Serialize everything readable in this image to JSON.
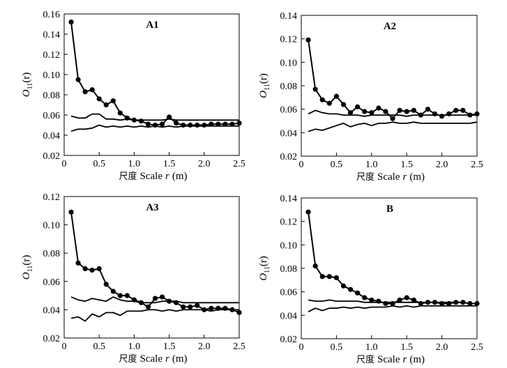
{
  "chart_data": [
    {
      "type": "line",
      "title": "A1",
      "xlabel_cjk": "尺度",
      "xlabel": "Scale",
      "xlabel_var": "r",
      "xlabel_unit": "(m)",
      "ylabel_main": "O",
      "ylabel_sub": "11",
      "ylabel_arg": "(r)",
      "xlim": [
        0,
        2.5
      ],
      "ylim": [
        0.02,
        0.16
      ],
      "xticks": [
        "0",
        "0.5",
        "1.0",
        "1.5",
        "2.0",
        "2.5"
      ],
      "yticks": [
        "0.02",
        "0.04",
        "0.06",
        "0.08",
        "0.10",
        "0.12",
        "0.14",
        "0.16"
      ],
      "x": [
        0.1,
        0.2,
        0.3,
        0.4,
        0.5,
        0.6,
        0.7,
        0.8,
        0.9,
        1.0,
        1.1,
        1.2,
        1.3,
        1.4,
        1.5,
        1.6,
        1.7,
        1.8,
        1.9,
        2.0,
        2.1,
        2.2,
        2.3,
        2.4,
        2.5
      ],
      "series": [
        {
          "role": "observed",
          "values": [
            0.152,
            0.095,
            0.083,
            0.085,
            0.076,
            0.07,
            0.074,
            0.062,
            0.057,
            0.055,
            0.054,
            0.051,
            0.05,
            0.051,
            0.058,
            0.052,
            0.05,
            0.05,
            0.05,
            0.05,
            0.051,
            0.051,
            0.051,
            0.051,
            0.052
          ]
        },
        {
          "role": "upper",
          "values": [
            0.059,
            0.057,
            0.057,
            0.061,
            0.061,
            0.056,
            0.056,
            0.055,
            0.056,
            0.055,
            0.055,
            0.055,
            0.055,
            0.055,
            0.056,
            0.055,
            0.055,
            0.055,
            0.055,
            0.055,
            0.055,
            0.055,
            0.055,
            0.055,
            0.055
          ]
        },
        {
          "role": "lower",
          "values": [
            0.044,
            0.046,
            0.046,
            0.047,
            0.05,
            0.048,
            0.049,
            0.048,
            0.049,
            0.048,
            0.049,
            0.048,
            0.049,
            0.048,
            0.049,
            0.048,
            0.049,
            0.049,
            0.049,
            0.049,
            0.049,
            0.049,
            0.049,
            0.049,
            0.049
          ]
        }
      ]
    },
    {
      "type": "line",
      "title": "A2",
      "xlabel_cjk": "尺度",
      "xlabel": "Scale",
      "xlabel_var": "r",
      "xlabel_unit": "(m)",
      "ylabel_main": "O",
      "ylabel_sub": "11",
      "ylabel_arg": "(r)",
      "xlim": [
        0,
        2.5
      ],
      "ylim": [
        0.02,
        0.14
      ],
      "xticks": [
        "0",
        "0.5",
        "1.0",
        "1.5",
        "2.0",
        "2.5"
      ],
      "yticks": [
        "0.02",
        "0.04",
        "0.06",
        "0.08",
        "0.10",
        "0.12",
        "0.14"
      ],
      "x": [
        0.1,
        0.2,
        0.3,
        0.4,
        0.5,
        0.6,
        0.7,
        0.8,
        0.9,
        1.0,
        1.1,
        1.2,
        1.3,
        1.4,
        1.5,
        1.6,
        1.7,
        1.8,
        1.9,
        2.0,
        2.1,
        2.2,
        2.3,
        2.4,
        2.5
      ],
      "series": [
        {
          "role": "observed",
          "values": [
            0.119,
            0.077,
            0.068,
            0.065,
            0.071,
            0.064,
            0.057,
            0.062,
            0.058,
            0.057,
            0.061,
            0.058,
            0.052,
            0.059,
            0.058,
            0.059,
            0.055,
            0.06,
            0.056,
            0.054,
            0.056,
            0.059,
            0.059,
            0.055,
            0.056
          ]
        },
        {
          "role": "upper",
          "values": [
            0.056,
            0.059,
            0.057,
            0.056,
            0.056,
            0.055,
            0.055,
            0.055,
            0.054,
            0.055,
            0.055,
            0.055,
            0.055,
            0.055,
            0.054,
            0.055,
            0.055,
            0.055,
            0.055,
            0.055,
            0.055,
            0.055,
            0.055,
            0.055,
            0.055
          ]
        },
        {
          "role": "lower",
          "values": [
            0.041,
            0.043,
            0.042,
            0.044,
            0.046,
            0.048,
            0.045,
            0.047,
            0.048,
            0.046,
            0.048,
            0.048,
            0.049,
            0.048,
            0.048,
            0.049,
            0.048,
            0.048,
            0.048,
            0.048,
            0.048,
            0.048,
            0.048,
            0.048,
            0.049
          ]
        }
      ]
    },
    {
      "type": "line",
      "title": "A3",
      "xlabel_cjk": "尺度",
      "xlabel": "Scale",
      "xlabel_var": "r",
      "xlabel_unit": "(m)",
      "ylabel_main": "O",
      "ylabel_sub": "11",
      "ylabel_arg": "(r)",
      "xlim": [
        0,
        2.5
      ],
      "ylim": [
        0.02,
        0.12
      ],
      "xticks": [
        "0",
        "0.5",
        "1.0",
        "1.5",
        "2.0",
        "2.5"
      ],
      "yticks": [
        "0.02",
        "0.04",
        "0.06",
        "0.08",
        "0.10",
        "0.12"
      ],
      "x": [
        0.1,
        0.2,
        0.3,
        0.4,
        0.5,
        0.6,
        0.7,
        0.8,
        0.9,
        1.0,
        1.1,
        1.2,
        1.3,
        1.4,
        1.5,
        1.6,
        1.7,
        1.8,
        1.9,
        2.0,
        2.1,
        2.2,
        2.3,
        2.4,
        2.5
      ],
      "series": [
        {
          "role": "observed",
          "values": [
            0.109,
            0.073,
            0.069,
            0.068,
            0.069,
            0.058,
            0.053,
            0.05,
            0.05,
            0.047,
            0.045,
            0.042,
            0.048,
            0.049,
            0.046,
            0.045,
            0.042,
            0.042,
            0.043,
            0.04,
            0.041,
            0.041,
            0.041,
            0.04,
            0.038
          ]
        },
        {
          "role": "upper",
          "values": [
            0.049,
            0.047,
            0.046,
            0.048,
            0.047,
            0.046,
            0.049,
            0.047,
            0.046,
            0.046,
            0.045,
            0.045,
            0.045,
            0.046,
            0.046,
            0.046,
            0.045,
            0.045,
            0.045,
            0.045,
            0.045,
            0.045,
            0.045,
            0.045,
            0.045
          ]
        },
        {
          "role": "lower",
          "values": [
            0.034,
            0.035,
            0.032,
            0.037,
            0.035,
            0.038,
            0.038,
            0.036,
            0.039,
            0.039,
            0.039,
            0.04,
            0.04,
            0.039,
            0.04,
            0.039,
            0.04,
            0.04,
            0.04,
            0.04,
            0.039,
            0.04,
            0.04,
            0.04,
            0.04
          ]
        }
      ]
    },
    {
      "type": "line",
      "title": "B",
      "xlabel_cjk": "尺度",
      "xlabel": "Scale",
      "xlabel_var": "r",
      "xlabel_unit": "(m)",
      "ylabel_main": "O",
      "ylabel_sub": "11",
      "ylabel_arg": "(r)",
      "xlim": [
        0,
        2.5
      ],
      "ylim": [
        0.02,
        0.14
      ],
      "xticks": [
        "0",
        "0.5",
        "1.0",
        "1.5",
        "2.0",
        "2.5"
      ],
      "yticks": [
        "0.02",
        "0.04",
        "0.06",
        "0.08",
        "0.10",
        "0.12",
        "0.14"
      ],
      "x": [
        0.1,
        0.2,
        0.3,
        0.4,
        0.5,
        0.6,
        0.7,
        0.8,
        0.9,
        1.0,
        1.1,
        1.2,
        1.3,
        1.4,
        1.5,
        1.6,
        1.7,
        1.8,
        1.9,
        2.0,
        2.1,
        2.2,
        2.3,
        2.4,
        2.5
      ],
      "series": [
        {
          "role": "observed",
          "values": [
            0.128,
            0.082,
            0.073,
            0.073,
            0.072,
            0.065,
            0.062,
            0.059,
            0.055,
            0.053,
            0.052,
            0.05,
            0.05,
            0.053,
            0.055,
            0.053,
            0.05,
            0.051,
            0.051,
            0.05,
            0.05,
            0.051,
            0.051,
            0.05,
            0.05
          ]
        },
        {
          "role": "upper",
          "values": [
            0.053,
            0.052,
            0.052,
            0.053,
            0.052,
            0.052,
            0.052,
            0.052,
            0.051,
            0.051,
            0.051,
            0.051,
            0.051,
            0.051,
            0.051,
            0.051,
            0.051,
            0.051,
            0.051,
            0.051,
            0.051,
            0.051,
            0.051,
            0.05,
            0.05
          ]
        },
        {
          "role": "lower",
          "values": [
            0.043,
            0.046,
            0.044,
            0.046,
            0.046,
            0.047,
            0.046,
            0.047,
            0.046,
            0.047,
            0.047,
            0.047,
            0.048,
            0.047,
            0.048,
            0.047,
            0.048,
            0.048,
            0.048,
            0.048,
            0.048,
            0.048,
            0.048,
            0.048,
            0.048
          ]
        }
      ]
    }
  ]
}
